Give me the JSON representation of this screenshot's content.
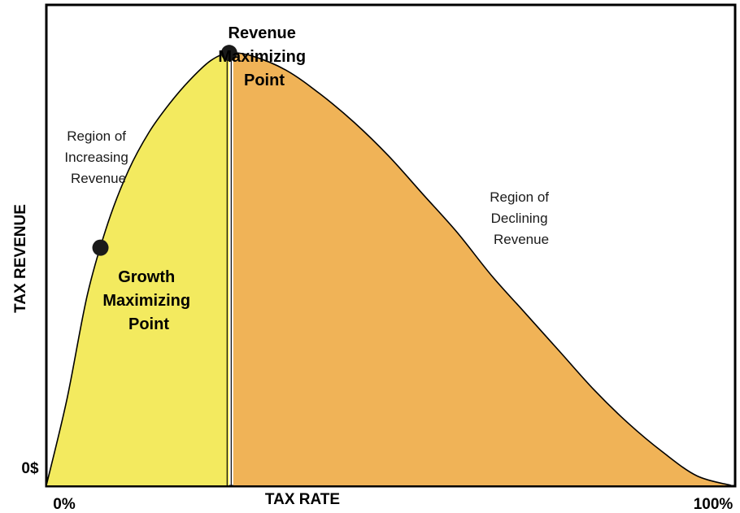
{
  "chart_data": {
    "type": "area",
    "xlabel": "TAX RATE",
    "ylabel": "TAX REVENUE",
    "x_tick_labels": {
      "min": "0%",
      "max": "100%"
    },
    "y_tick_labels": {
      "min": "0$"
    },
    "xlim": [
      0,
      100
    ],
    "ylim": [
      0,
      100
    ],
    "curve": {
      "x": [
        0,
        3,
        6,
        9,
        12,
        15,
        18,
        21,
        24,
        26.7,
        30,
        35,
        40,
        45,
        50,
        55,
        60,
        65,
        70,
        75,
        80,
        85,
        90,
        95,
        100
      ],
      "y": [
        0,
        18,
        40,
        55,
        66,
        74,
        80,
        85,
        89,
        90.6,
        90,
        87,
        82,
        76,
        69,
        61,
        53,
        44,
        36,
        28,
        20,
        13,
        7,
        2,
        0
      ]
    },
    "regions": [
      {
        "from": 0,
        "to": 26.7,
        "color": "#f3ea5f",
        "label": [
          "Region of",
          "Increasing",
          "Revenue"
        ]
      },
      {
        "from": 26.7,
        "to": 100,
        "color": "#f0b357",
        "label": [
          "Region of",
          "Declining",
          "Revenue"
        ]
      }
    ],
    "points": [
      {
        "x": 26.7,
        "y": 90.6,
        "label": [
          "Revenue",
          "Maximizing",
          "Point"
        ]
      },
      {
        "x": 7.9,
        "y": 49.8,
        "label": [
          "Growth",
          "Maximizing",
          "Point"
        ]
      }
    ],
    "colors": {
      "curve": "#000000",
      "frame": "#000000",
      "point": "#1a1a1a"
    },
    "grid": false
  }
}
